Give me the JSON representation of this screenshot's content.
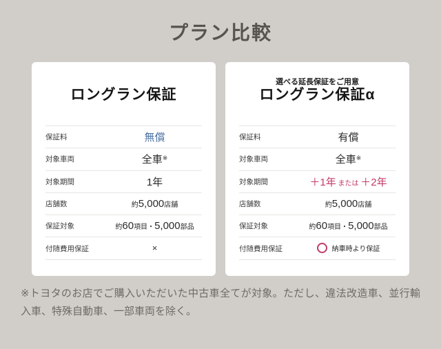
{
  "page": {
    "title": "プラン比較"
  },
  "colors": {
    "background": "#d1cec9",
    "card_background": "#ffffff",
    "accent_blue": "#4a70a2",
    "accent_pink": "#c23a69",
    "page_title_color": "#57534d",
    "footnote_color": "#6e6a64"
  },
  "cards": [
    {
      "subtitle": "",
      "title": "ロングラン保証",
      "rows": [
        {
          "label": "保証料",
          "parts": [
            {
              "text": "無償",
              "size": "large",
              "color": "blue"
            }
          ]
        },
        {
          "label": "対象車両",
          "parts": [
            {
              "text": "全車",
              "size": "large"
            },
            {
              "text": "※",
              "size": "sup"
            }
          ]
        },
        {
          "label": "対象期間",
          "parts": [
            {
              "text": "1年",
              "size": "large"
            }
          ]
        },
        {
          "label": "店舗数",
          "parts": [
            {
              "text": "約",
              "size": "small"
            },
            {
              "text": "5,000",
              "size": "large"
            },
            {
              "text": "店舗",
              "size": "small"
            }
          ]
        },
        {
          "label": "保証対象",
          "parts": [
            {
              "text": "約",
              "size": "small"
            },
            {
              "text": "60",
              "size": "large"
            },
            {
              "text": "項目・",
              "size": "small"
            },
            {
              "text": "5,000",
              "size": "large"
            },
            {
              "text": "部品",
              "size": "small"
            }
          ]
        },
        {
          "label": "付随費用保証",
          "parts": [
            {
              "text": "×",
              "size": "cross"
            }
          ]
        }
      ]
    },
    {
      "subtitle": "選べる延長保証をご用意",
      "title": "ロングラン保証α",
      "rows": [
        {
          "label": "保証料",
          "parts": [
            {
              "text": "有償",
              "size": "large"
            }
          ]
        },
        {
          "label": "対象車両",
          "parts": [
            {
              "text": "全車",
              "size": "large"
            },
            {
              "text": "※",
              "size": "sup"
            }
          ]
        },
        {
          "label": "対象期間",
          "parts": [
            {
              "text": "＋1年",
              "size": "large",
              "color": "pink"
            },
            {
              "text": " または ",
              "size": "small",
              "color": "pink"
            },
            {
              "text": "＋2年",
              "size": "large",
              "color": "pink"
            }
          ]
        },
        {
          "label": "店舗数",
          "parts": [
            {
              "text": "約",
              "size": "small"
            },
            {
              "text": "5,000",
              "size": "large"
            },
            {
              "text": "店舗",
              "size": "small"
            }
          ]
        },
        {
          "label": "保証対象",
          "parts": [
            {
              "text": "約",
              "size": "small"
            },
            {
              "text": "60",
              "size": "large"
            },
            {
              "text": "項目・",
              "size": "small"
            },
            {
              "text": "5,000",
              "size": "large"
            },
            {
              "text": "部品",
              "size": "small"
            }
          ]
        },
        {
          "label": "付随費用保証",
          "parts": [
            {
              "icon": "circle-icon"
            },
            {
              "text": "納車時より保証",
              "size": "small"
            }
          ]
        }
      ]
    }
  ],
  "footnote": "※トヨタのお店でご購入いただいた中古車全てが対象。ただし、違法改造車、並行輸入車、特殊自動車、一部車両を除く。"
}
